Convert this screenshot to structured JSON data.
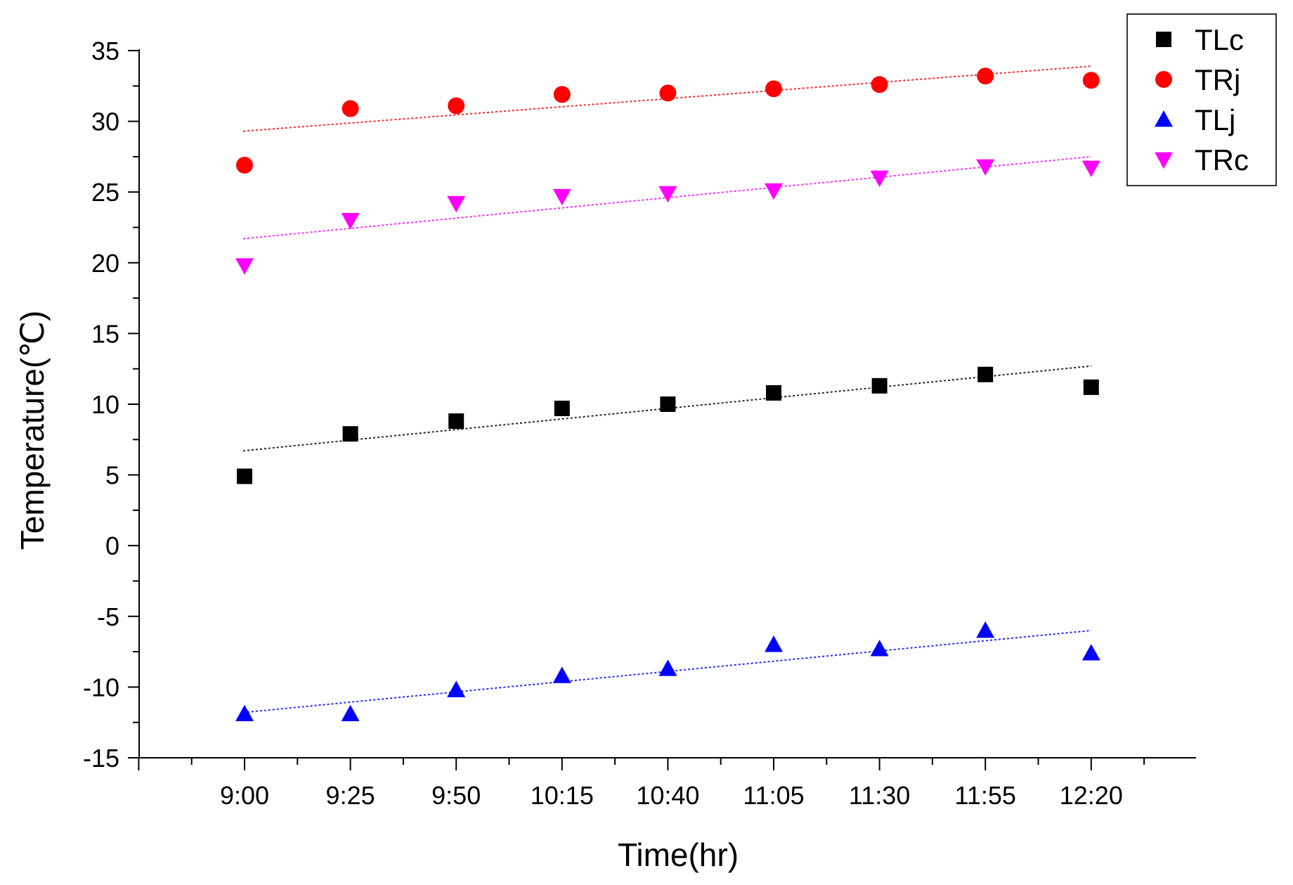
{
  "chart_data": {
    "type": "scatter",
    "title": "",
    "xlabel": "Time(hr)",
    "ylabel": "Temperature(℃)",
    "categories": [
      "9:00",
      "9:25",
      "9:50",
      "10:15",
      "10:40",
      "11:05",
      "11:30",
      "11:55",
      "12:20"
    ],
    "ylim": [
      -15,
      35
    ],
    "yticks": [
      35,
      30,
      25,
      20,
      15,
      10,
      5,
      0,
      -5,
      -10,
      -15
    ],
    "ytick_labels": [
      "35",
      "30",
      "25",
      "20",
      "15",
      "10",
      "5",
      "0",
      "-5",
      "-10",
      "-15"
    ],
    "legend_position": "top-right",
    "grid": false,
    "series": [
      {
        "name": "TLc",
        "marker": "square",
        "color": "#000000",
        "values": [
          4.9,
          7.9,
          8.8,
          9.7,
          10.0,
          10.8,
          11.3,
          12.1,
          11.2
        ],
        "trend": [
          6.7,
          12.7
        ]
      },
      {
        "name": "TRj",
        "marker": "circle",
        "color": "#ff0000",
        "values": [
          26.9,
          30.9,
          31.1,
          31.9,
          32.0,
          32.3,
          32.6,
          33.2,
          32.9
        ],
        "trend": [
          29.3,
          33.9
        ]
      },
      {
        "name": "TLj",
        "marker": "triangle-up",
        "color": "#0000ff",
        "values": [
          -11.9,
          -11.9,
          -10.2,
          -9.2,
          -8.7,
          -7.0,
          -7.3,
          -6.0,
          -7.6
        ],
        "trend": [
          -11.8,
          -6.0
        ]
      },
      {
        "name": "TRc",
        "marker": "triangle-down",
        "color": "#ff00ff",
        "values": [
          19.8,
          23.0,
          24.2,
          24.7,
          24.9,
          25.1,
          26.0,
          26.8,
          26.7
        ],
        "trend": [
          21.7,
          27.5
        ]
      }
    ]
  }
}
